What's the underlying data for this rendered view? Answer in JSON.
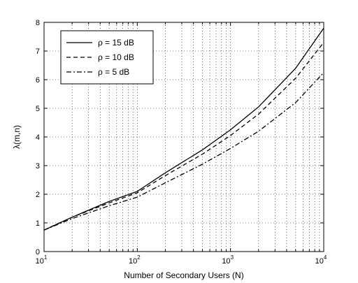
{
  "chart_data": {
    "type": "line",
    "xscale": "log",
    "xlim": [
      10,
      10000
    ],
    "ylim": [
      0,
      8
    ],
    "grid": true,
    "legend_position": "top-left",
    "xlabel": "Number of Secondary Users (N)",
    "ylabel": "λ(m,n)",
    "x_ticks": [
      {
        "base": "10",
        "exp": "1",
        "value": 10
      },
      {
        "base": "10",
        "exp": "2",
        "value": 100
      },
      {
        "base": "10",
        "exp": "3",
        "value": 1000
      },
      {
        "base": "10",
        "exp": "4",
        "value": 10000
      }
    ],
    "y_ticks": [
      "0",
      "1",
      "2",
      "3",
      "4",
      "5",
      "6",
      "7",
      "8"
    ],
    "series": [
      {
        "name": "ρ = 15 dB",
        "style": "solid",
        "color": "#000000",
        "x": [
          10,
          20,
          50,
          100,
          200,
          500,
          1000,
          2000,
          5000,
          10000
        ],
        "y": [
          0.75,
          1.2,
          1.75,
          2.1,
          2.75,
          3.55,
          4.25,
          5.05,
          6.4,
          7.8
        ]
      },
      {
        "name": "ρ = 10 dB",
        "style": "dashed",
        "color": "#000000",
        "x": [
          10,
          20,
          50,
          100,
          200,
          500,
          1000,
          2000,
          5000,
          10000
        ],
        "y": [
          0.75,
          1.2,
          1.7,
          2.05,
          2.65,
          3.4,
          4.05,
          4.8,
          6.05,
          7.3
        ]
      },
      {
        "name": "ρ = 5 dB",
        "style": "dashdot",
        "color": "#000000",
        "x": [
          10,
          20,
          50,
          100,
          200,
          500,
          1000,
          2000,
          5000,
          10000
        ],
        "y": [
          0.75,
          1.15,
          1.6,
          1.9,
          2.4,
          3.05,
          3.6,
          4.2,
          5.2,
          6.25
        ]
      }
    ]
  }
}
